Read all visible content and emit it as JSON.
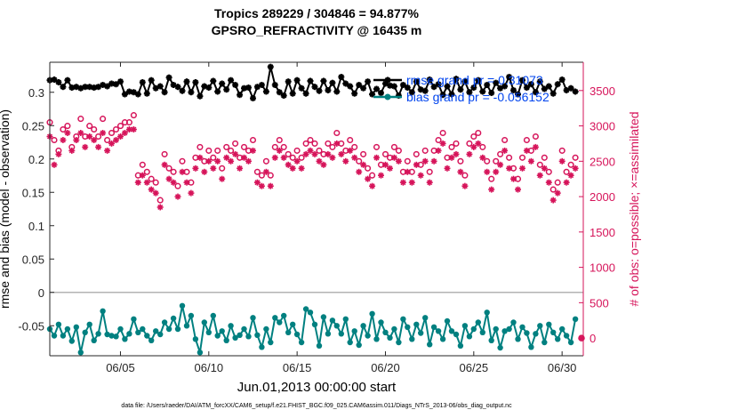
{
  "chart_data": {
    "type": "line",
    "title_line1": "Tropics 289229 / 304846 = 94.877%",
    "title_line2": "GPSRO_REFRACTIVITY @ 16435 m",
    "xlabel": "Jun.01,2013 00:00:00 start",
    "ylabel_left": "rmse and bias (model - observation)",
    "ylabel_right": "# of obs: o=possible; ×=assimilated",
    "footer": "data file: /Users/raeder/DAI/ATM_forcXX/CAM6_setup/f.e21.FHIST_BGC.f09_025.CAM6assim.011/Diags_NTrS_2013-06/obs_diag_output.nc",
    "xlim": [
      1.0,
      31.2
    ],
    "ylim_left": [
      -0.095,
      0.345
    ],
    "ylim_right": [
      -250,
      3900
    ],
    "x_ticks": [
      5,
      10,
      15,
      20,
      25,
      30
    ],
    "x_tick_labels": [
      "06/05",
      "06/10",
      "06/15",
      "06/20",
      "06/25",
      "06/30"
    ],
    "y_left_ticks": [
      -0.05,
      0,
      0.05,
      0.1,
      0.15,
      0.2,
      0.25,
      0.3
    ],
    "y_left_tick_labels": [
      "-0.05",
      "0",
      "0.05",
      "0.1",
      "0.15",
      "0.2",
      "0.25",
      "0.3"
    ],
    "y_right_ticks": [
      0,
      500,
      1000,
      1500,
      2000,
      2500,
      3000,
      3500
    ],
    "y_right_tick_labels": [
      "0",
      "500",
      "1000",
      "1500",
      "2000",
      "2500",
      "3000",
      "3500"
    ],
    "zero_line": 0,
    "legend": [
      {
        "name": "rmse grand pr = 0.31073",
        "color": "#000000"
      },
      {
        "name": "bias grand pr = -0.056152",
        "color": "#008080"
      }
    ],
    "colors": {
      "rmse": "#000000",
      "bias": "#008080",
      "obs": "#d6145a",
      "legend_text": "#0044ee",
      "zero": "#b3b3b3"
    },
    "step_days": 0.25,
    "series": [
      {
        "name": "rmse",
        "axis": "left",
        "marker": "asterisk",
        "start": 1.0,
        "values": [
          0.318,
          0.319,
          0.315,
          0.308,
          0.318,
          0.307,
          0.308,
          0.306,
          0.308,
          0.308,
          0.307,
          0.308,
          0.311,
          0.309,
          0.313,
          0.312,
          0.316,
          0.297,
          0.301,
          0.3,
          0.297,
          0.315,
          0.298,
          0.318,
          0.306,
          0.309,
          0.3,
          0.322,
          0.311,
          0.308,
          0.302,
          0.316,
          0.3,
          0.315,
          0.294,
          0.309,
          0.307,
          0.317,
          0.301,
          0.313,
          0.304,
          0.318,
          0.311,
          0.296,
          0.306,
          0.307,
          0.291,
          0.308,
          0.311,
          0.301,
          0.338,
          0.311,
          0.3,
          0.295,
          0.316,
          0.298,
          0.318,
          0.306,
          0.298,
          0.317,
          0.308,
          0.302,
          0.317,
          0.303,
          0.314,
          0.301,
          0.323,
          0.313,
          0.309,
          0.298,
          0.311,
          0.306,
          0.316,
          0.297,
          0.305,
          0.299,
          0.313,
          0.31,
          0.309,
          0.295,
          0.311,
          0.307,
          0.3,
          0.316,
          0.304,
          0.302,
          0.319,
          0.308,
          0.312,
          0.296,
          0.309,
          0.297,
          0.32,
          0.304,
          0.316,
          0.3,
          0.307,
          0.318,
          0.301,
          0.311,
          0.299,
          0.314,
          0.306,
          0.309,
          0.323,
          0.303,
          0.297,
          0.318,
          0.307,
          0.312,
          0.3,
          0.316,
          0.305,
          0.309,
          0.298,
          0.312,
          0.319,
          0.303,
          0.306,
          0.301
        ]
      },
      {
        "name": "bias",
        "axis": "left",
        "marker": "dot",
        "start": 1.0,
        "values": [
          -0.055,
          -0.065,
          -0.048,
          -0.065,
          -0.055,
          -0.073,
          -0.052,
          -0.09,
          -0.06,
          -0.048,
          -0.072,
          -0.062,
          -0.028,
          -0.063,
          -0.065,
          -0.066,
          -0.055,
          -0.07,
          -0.062,
          -0.04,
          -0.06,
          -0.055,
          -0.065,
          -0.072,
          -0.058,
          -0.063,
          -0.045,
          -0.055,
          -0.039,
          -0.055,
          -0.02,
          -0.05,
          -0.035,
          -0.07,
          -0.09,
          -0.045,
          -0.06,
          -0.035,
          -0.065,
          -0.058,
          -0.072,
          -0.05,
          -0.068,
          -0.064,
          -0.055,
          -0.066,
          -0.038,
          -0.064,
          -0.082,
          -0.055,
          -0.075,
          -0.038,
          -0.045,
          -0.035,
          -0.06,
          -0.048,
          -0.063,
          -0.075,
          -0.025,
          -0.03,
          -0.048,
          -0.08,
          -0.037,
          -0.062,
          -0.042,
          -0.05,
          -0.062,
          -0.04,
          -0.075,
          -0.058,
          -0.079,
          -0.05,
          -0.065,
          -0.032,
          -0.07,
          -0.045,
          -0.06,
          -0.068,
          -0.055,
          -0.075,
          -0.04,
          -0.052,
          -0.07,
          -0.048,
          -0.061,
          -0.038,
          -0.078,
          -0.052,
          -0.058,
          -0.07,
          -0.043,
          -0.058,
          -0.063,
          -0.08,
          -0.05,
          -0.066,
          -0.055,
          -0.045,
          -0.06,
          -0.03,
          -0.072,
          -0.055,
          -0.083,
          -0.058,
          -0.055,
          -0.045,
          -0.07,
          -0.052,
          -0.061,
          -0.082,
          -0.062,
          -0.05,
          -0.075,
          -0.048,
          -0.06,
          -0.07,
          -0.055,
          -0.065,
          -0.075,
          -0.04
        ]
      },
      {
        "name": "obs possible",
        "axis": "right",
        "marker": "circle",
        "start": 1.0,
        "values": [
          3050,
          2800,
          2650,
          2950,
          3000,
          2700,
          2850,
          3100,
          2850,
          3000,
          2950,
          2850,
          3100,
          2800,
          2900,
          2950,
          3000,
          3050,
          3050,
          3150,
          2300,
          2450,
          2350,
          2250,
          2200,
          1950,
          2600,
          2400,
          2350,
          2150,
          2500,
          2350,
          2200,
          2550,
          2700,
          2500,
          2650,
          2550,
          2650,
          2400,
          2700,
          2650,
          2750,
          2550,
          2700,
          2650,
          2800,
          2350,
          2300,
          2500,
          2300,
          2700,
          2800,
          2700,
          2600,
          2550,
          2650,
          2550,
          2750,
          2800,
          2750,
          2650,
          2600,
          2750,
          2700,
          2900,
          2750,
          2650,
          2800,
          2700,
          2500,
          2600,
          2400,
          2300,
          2700,
          2450,
          2600,
          2550,
          2700,
          2650,
          2350,
          2500,
          2350,
          2600,
          2450,
          2650,
          2350,
          2650,
          2800,
          2900,
          2550,
          2700,
          2750,
          2500,
          2300,
          2750,
          2850,
          2900,
          2700,
          2500,
          2250,
          2500,
          2600,
          2800,
          2550,
          2400,
          2250,
          2550,
          2800,
          2650,
          2850,
          2450,
          2550,
          2350,
          2100,
          2200,
          2650,
          2350,
          2450,
          2550
        ]
      },
      {
        "name": "obs assimilated",
        "axis": "right",
        "marker": "asterisk",
        "start": 1.0,
        "values": [
          2850,
          2450,
          2600,
          2800,
          2900,
          2650,
          2800,
          2900,
          2700,
          2850,
          2800,
          2700,
          2900,
          2650,
          2750,
          2800,
          2850,
          2900,
          2950,
          2950,
          2200,
          2300,
          2200,
          2100,
          2050,
          1850,
          2450,
          2250,
          2200,
          2000,
          2350,
          2200,
          2050,
          2400,
          2550,
          2350,
          2500,
          2400,
          2500,
          2250,
          2550,
          2500,
          2600,
          2400,
          2550,
          2500,
          2650,
          2200,
          2150,
          2350,
          2150,
          2550,
          2650,
          2550,
          2450,
          2400,
          2500,
          2400,
          2600,
          2650,
          2600,
          2500,
          2450,
          2600,
          2550,
          2750,
          2600,
          2500,
          2650,
          2550,
          2350,
          2450,
          2250,
          2150,
          2550,
          2300,
          2450,
          2400,
          2550,
          2500,
          2200,
          2350,
          2200,
          2450,
          2300,
          2500,
          2200,
          2500,
          2650,
          2750,
          2400,
          2550,
          2600,
          2350,
          2150,
          2600,
          2700,
          2750,
          2550,
          2350,
          2100,
          2350,
          2450,
          2650,
          2400,
          2250,
          2100,
          2400,
          2650,
          2500,
          2700,
          2300,
          2400,
          2200,
          1950,
          2050,
          2500,
          2200,
          2300,
          2400
        ]
      }
    ]
  }
}
